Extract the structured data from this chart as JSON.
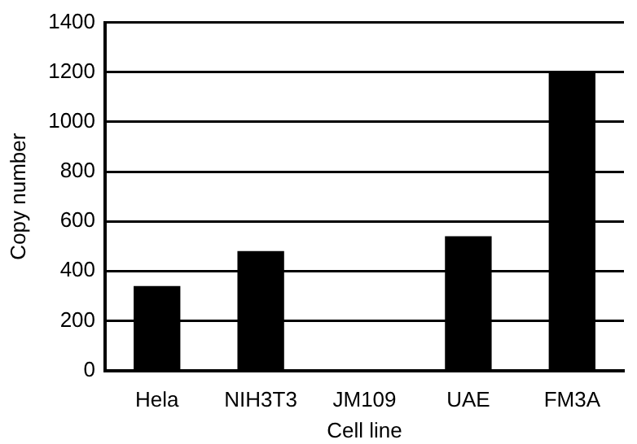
{
  "chart_data": {
    "type": "bar",
    "xlabel": "Cell line",
    "ylabel": "Copy number",
    "categories": [
      "Hela",
      "NIH3T3",
      "JM109",
      "UAE",
      "FM3A"
    ],
    "values": [
      340,
      480,
      0,
      540,
      1200
    ],
    "color": "#000000",
    "ylim": [
      0,
      1400
    ],
    "yticks": [
      0,
      200,
      400,
      600,
      800,
      1000,
      1200,
      1400
    ],
    "grid": "y"
  }
}
